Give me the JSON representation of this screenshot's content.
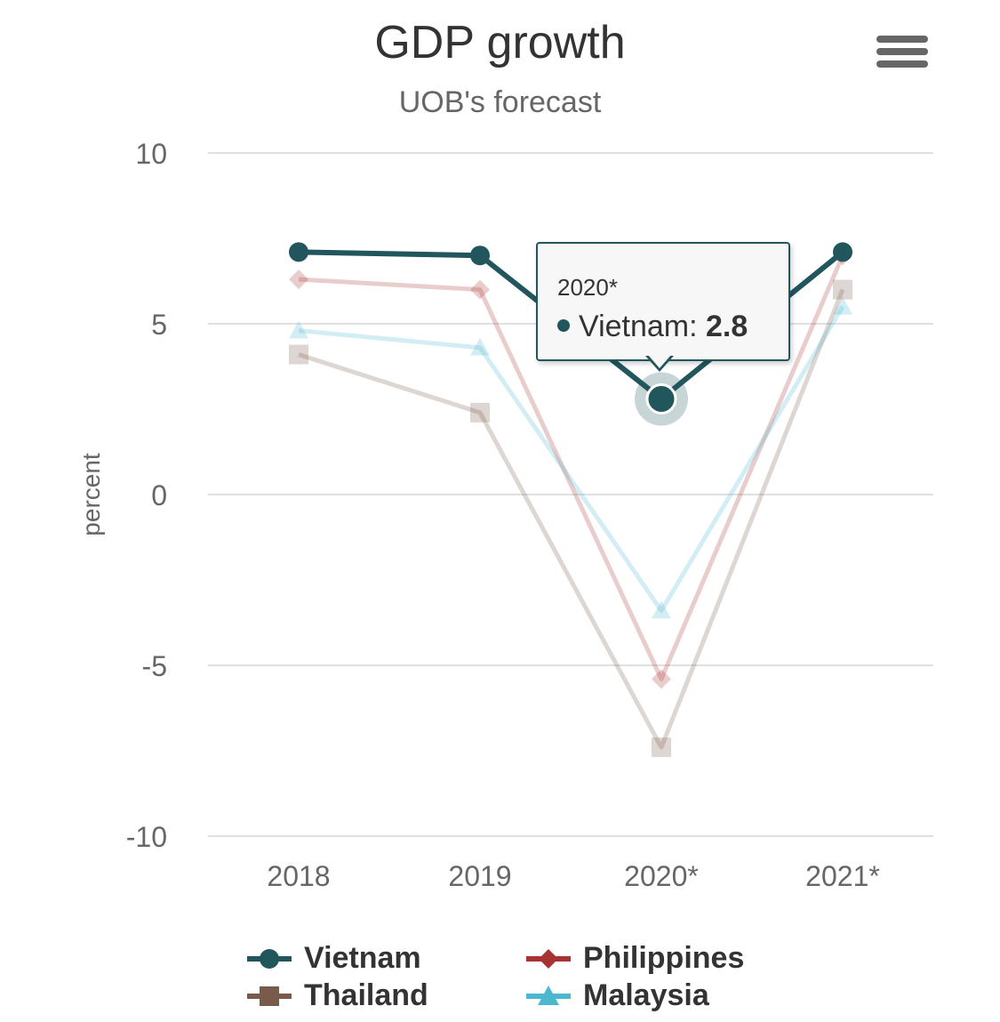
{
  "chart_data": {
    "type": "line",
    "title": "GDP growth",
    "subtitle": "UOB's forecast",
    "ylabel": "percent",
    "xlabel": "",
    "categories": [
      "2018",
      "2019",
      "2020*",
      "2021*"
    ],
    "ylim": [
      -10,
      10
    ],
    "yticks": [
      "10",
      "5",
      "0",
      "-5",
      "-10"
    ],
    "ytick_values": [
      10,
      5,
      0,
      -5,
      -10
    ],
    "grid": true,
    "legend_position": "bottom",
    "series": [
      {
        "name": "Vietnam",
        "values": [
          7.1,
          7.0,
          2.8,
          7.1
        ],
        "color": "#22565d",
        "marker": "circle",
        "highlighted": true
      },
      {
        "name": "Philippines",
        "values": [
          6.3,
          6.0,
          -5.4,
          7.0
        ],
        "color": "#a83232",
        "marker": "diamond",
        "highlighted": false
      },
      {
        "name": "Thailand",
        "values": [
          4.1,
          2.4,
          -7.4,
          6.0
        ],
        "color": "#7a5a4a",
        "marker": "square",
        "highlighted": false
      },
      {
        "name": "Malaysia",
        "values": [
          4.8,
          4.3,
          -3.4,
          5.5
        ],
        "color": "#4bb8d0",
        "marker": "triangle",
        "highlighted": false
      }
    ],
    "tooltip": {
      "header": "2020*",
      "series": "Vietnam",
      "label": "Vietnam: ",
      "value": "2.8"
    }
  },
  "legend": [
    {
      "name": "Vietnam",
      "color": "#22565d",
      "marker": "circle"
    },
    {
      "name": "Philippines",
      "color": "#a83232",
      "marker": "diamond"
    },
    {
      "name": "Thailand",
      "color": "#7a5a4a",
      "marker": "square"
    },
    {
      "name": "Malaysia",
      "color": "#4bb8d0",
      "marker": "triangle"
    }
  ],
  "menu": {
    "icon": "hamburger-menu-icon"
  }
}
